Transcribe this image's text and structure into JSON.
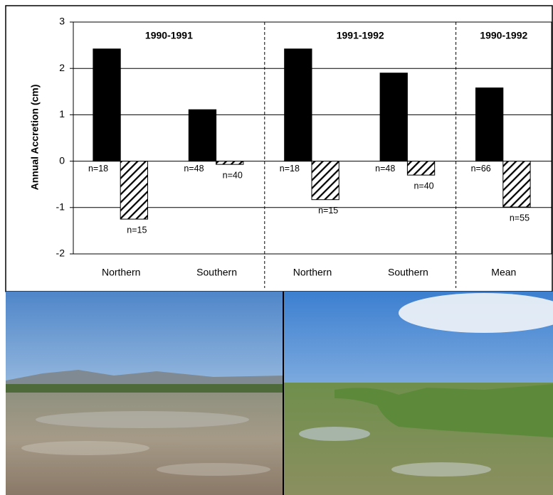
{
  "chart_data": {
    "type": "bar",
    "y_label": "Annual Accretion (cm)",
    "categories": [
      "Northern",
      "Southern",
      "Northern",
      "Southern",
      "Mean"
    ],
    "group_labels": [
      "1990-1991",
      "1991-1992",
      "1990-1992"
    ],
    "series": [
      {
        "color": "#000000",
        "fill": "solid",
        "values": [
          2.42,
          1.11,
          2.42,
          1.9,
          1.58
        ],
        "sample_sizes": [
          "n=18",
          "n=48",
          "n=18",
          "n=48",
          "n=66"
        ]
      },
      {
        "color": "#000000",
        "fill": "hatched",
        "values": [
          -1.25,
          -0.07,
          -0.83,
          -0.3,
          -0.99
        ],
        "sample_sizes": [
          "n=15",
          "n=40",
          "n=15",
          "n=40",
          "n=55"
        ]
      }
    ],
    "ylim": [
      -2,
      3
    ],
    "yticks": [
      -2,
      -1,
      0,
      1,
      2,
      3
    ],
    "grid": true
  }
}
